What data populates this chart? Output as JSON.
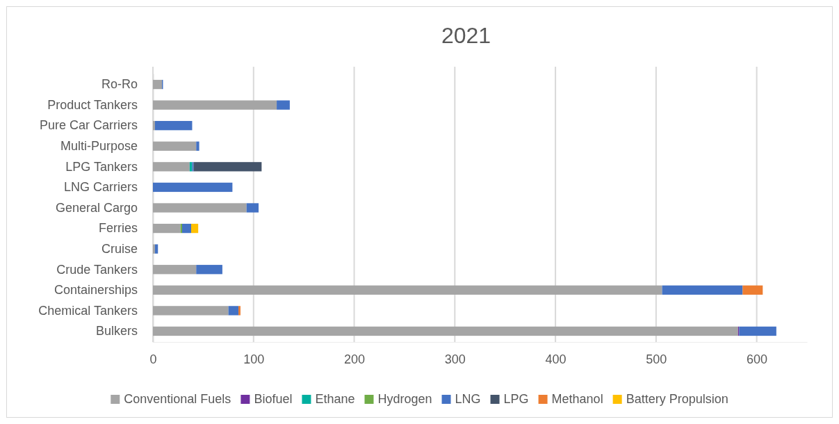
{
  "chart_data": {
    "type": "bar",
    "orientation": "horizontal",
    "stacked": true,
    "title": "2021",
    "categories": [
      "Ro-Ro",
      "Product Tankers",
      "Pure Car Carriers",
      "Multi-Purpose",
      "LPG Tankers",
      "LNG Carriers",
      "General Cargo",
      "Ferries",
      "Cruise",
      "Crude Tankers",
      "Containerships",
      "Chemical Tankers",
      "Bulkers"
    ],
    "series": [
      {
        "name": "Conventional Fuels",
        "color": "#a5a5a5",
        "values": [
          9,
          123,
          2,
          43,
          36.5,
          0,
          93,
          27.5,
          2,
          43,
          506,
          75,
          581.5
        ]
      },
      {
        "name": "Biofuel",
        "color": "#7030a0",
        "values": [
          0,
          0,
          0,
          0,
          0,
          0,
          0,
          0,
          0,
          0,
          0,
          0,
          1
        ]
      },
      {
        "name": "Ethane",
        "color": "#00b0a0",
        "values": [
          0,
          0,
          0,
          0,
          2.5,
          0,
          0,
          0,
          0,
          0,
          0,
          0,
          0
        ]
      },
      {
        "name": "Hydrogen",
        "color": "#70ad47",
        "values": [
          0,
          0,
          0,
          0,
          0,
          0,
          0,
          1.5,
          0,
          0,
          0,
          0,
          0
        ]
      },
      {
        "name": "LNG",
        "color": "#4472c4",
        "values": [
          1,
          13,
          37,
          3,
          1.5,
          79,
          12,
          9,
          3,
          26,
          80,
          10,
          37
        ]
      },
      {
        "name": "LPG",
        "color": "#44546a",
        "values": [
          0,
          0,
          0,
          0,
          67.5,
          0,
          0,
          0,
          0,
          0,
          0,
          0,
          0
        ]
      },
      {
        "name": "Methanol",
        "color": "#ed7d31",
        "values": [
          0,
          0,
          0,
          0,
          0,
          0,
          0,
          0,
          0,
          0,
          20,
          2,
          0
        ]
      },
      {
        "name": "Battery Propulsion",
        "color": "#ffc000",
        "values": [
          0,
          0,
          0,
          0,
          0,
          0,
          0,
          7,
          0,
          0,
          0,
          0,
          0
        ]
      }
    ],
    "xlim": [
      0,
      650
    ],
    "xticks": [
      0,
      100,
      200,
      300,
      400,
      500,
      600
    ],
    "grid": "x",
    "legend": "bottom"
  }
}
